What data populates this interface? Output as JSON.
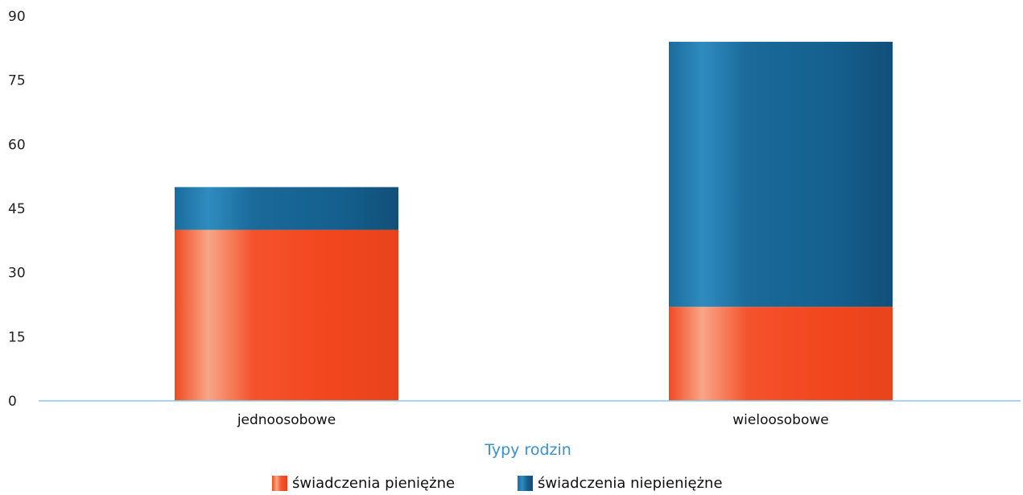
{
  "chart_data": {
    "type": "bar",
    "stacked": true,
    "categories": [
      "jednoosobowe",
      "wieloosobowe"
    ],
    "series": [
      {
        "name": "świadczenia pieniężne",
        "values": [
          40,
          22
        ],
        "color": "#f4502a"
      },
      {
        "name": "świadczenia niepieniężne",
        "values": [
          10,
          62
        ],
        "color": "#1b6c9c"
      }
    ],
    "xlabel": "Typy rodzin",
    "ylabel": "",
    "ylim": [
      0,
      90
    ],
    "yticks": [
      0,
      15,
      30,
      45,
      60,
      75,
      90
    ],
    "grid": false,
    "legend_position": "bottom-center",
    "axis_color": "#8cc8e8",
    "xlabel_color": "#3d8fcc"
  }
}
